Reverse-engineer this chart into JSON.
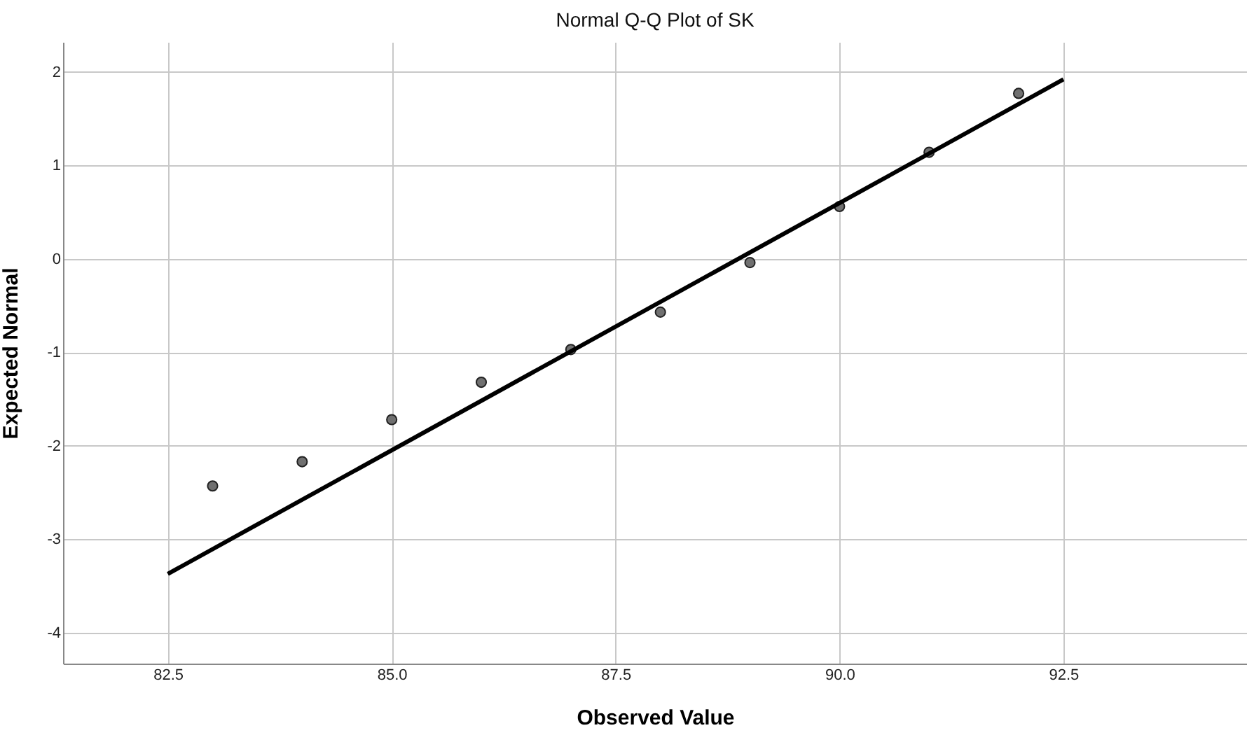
{
  "chart_data": {
    "type": "scatter",
    "title": "Normal Q-Q Plot of SK",
    "xlabel": "Observed Value",
    "ylabel": "Expected Normal",
    "xlim": [
      81.33,
      94.55
    ],
    "xticks": [
      {
        "value": 82.5,
        "label": "82.5"
      },
      {
        "value": 85,
        "label": "85.0"
      },
      {
        "value": 87.5,
        "label": "87.5"
      },
      {
        "value": 90,
        "label": "90.0"
      },
      {
        "value": 92.5,
        "label": "92.5"
      }
    ],
    "ylim": [
      -4.33,
      2.32
    ],
    "yticks": [
      -4,
      -3,
      -2,
      -1,
      0,
      1,
      2
    ],
    "grid": true,
    "series": [
      {
        "color": "#707070",
        "marker": "circle",
        "x": [
          83,
          84,
          85,
          86,
          87,
          88,
          89,
          90,
          91,
          92
        ],
        "values": [
          -2.43,
          -2.17,
          -1.72,
          -1.32,
          -0.97,
          -0.57,
          -0.04,
          0.56,
          1.14,
          1.77
        ]
      },
      {
        "type": "line",
        "color": "#000000",
        "line_style": "solid",
        "x": [
          82.5,
          92.5
        ],
        "values": [
          -3.37,
          1.92
        ]
      }
    ]
  }
}
